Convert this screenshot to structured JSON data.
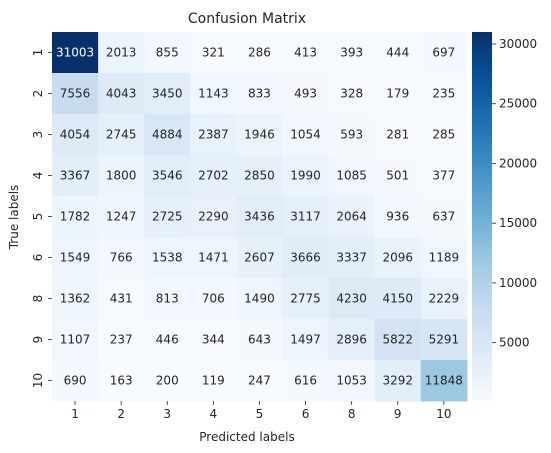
{
  "chart_data": {
    "type": "heatmap",
    "title": "Confusion Matrix",
    "xlabel": "Predicted labels",
    "ylabel": "True labels",
    "x_categories": [
      "1",
      "2",
      "3",
      "4",
      "5",
      "6",
      "8",
      "9",
      "10"
    ],
    "y_categories": [
      "1",
      "2",
      "3",
      "4",
      "5",
      "6",
      "8",
      "9",
      "10"
    ],
    "values": [
      [
        31003,
        2013,
        855,
        321,
        286,
        413,
        393,
        444,
        697
      ],
      [
        7556,
        4043,
        3450,
        1143,
        833,
        493,
        328,
        179,
        235
      ],
      [
        4054,
        2745,
        4884,
        2387,
        1946,
        1054,
        593,
        281,
        285
      ],
      [
        3367,
        1800,
        3546,
        2702,
        2850,
        1990,
        1085,
        501,
        377
      ],
      [
        1782,
        1247,
        2725,
        2290,
        3436,
        3117,
        2064,
        936,
        637
      ],
      [
        1549,
        766,
        1538,
        1471,
        2607,
        3666,
        3337,
        2096,
        1189
      ],
      [
        1362,
        431,
        813,
        706,
        1490,
        2775,
        4230,
        4150,
        2229
      ],
      [
        1107,
        237,
        446,
        344,
        643,
        1497,
        2896,
        5822,
        5291
      ],
      [
        690,
        163,
        200,
        119,
        247,
        616,
        1053,
        3292,
        11848
      ]
    ],
    "colormap": "Blues",
    "color_range": [
      119,
      31003
    ],
    "colorbar": {
      "ticks": [
        5000,
        10000,
        15000,
        20000,
        25000,
        30000
      ],
      "tick_labels": [
        "5000",
        "10000",
        "15000",
        "20000",
        "25000",
        "30000"
      ]
    }
  }
}
